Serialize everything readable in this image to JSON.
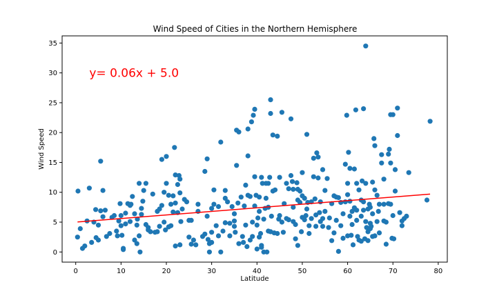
{
  "chart_data": {
    "type": "scatter",
    "title": "Wind Speed of Cities in the Northern Hemisphere",
    "xlabel": "Latitude",
    "ylabel": "Wind Speed",
    "xlim": [
      -3,
      82
    ],
    "ylim": [
      -1.7,
      36.2
    ],
    "xticks": [
      0,
      10,
      20,
      30,
      40,
      50,
      60,
      70,
      80
    ],
    "yticks": [
      0,
      5,
      10,
      15,
      20,
      25,
      30,
      35
    ],
    "grid": false,
    "point_color": "#1f77b4",
    "line_color": "#ff0000",
    "annotation": {
      "text": "y= 0.06x + 5.0",
      "x": 3,
      "y": 30,
      "color": "#ff0000"
    },
    "regression": {
      "slope": 0.06,
      "intercept": 5.0,
      "x_range": [
        0.4,
        78.2
      ]
    },
    "points": [
      [
        0.4,
        2.5
      ],
      [
        0.5,
        10.2
      ],
      [
        1,
        3.9
      ],
      [
        1.5,
        0.6
      ],
      [
        2,
        1
      ],
      [
        2.5,
        5.2
      ],
      [
        3,
        10.7
      ],
      [
        3.5,
        1.6
      ],
      [
        4,
        5
      ],
      [
        4.4,
        7.1
      ],
      [
        4.5,
        2.4
      ],
      [
        5,
        4.5
      ],
      [
        5,
        2
      ],
      [
        5.5,
        15.2
      ],
      [
        5.5,
        6.9
      ],
      [
        6,
        5.9
      ],
      [
        6,
        10.3
      ],
      [
        6.5,
        7
      ],
      [
        6.8,
        2.6
      ],
      [
        7.5,
        3.1
      ],
      [
        8,
        5.8
      ],
      [
        8.5,
        6.1
      ],
      [
        9,
        3.5
      ],
      [
        9.2,
        2.7
      ],
      [
        9.5,
        5.2
      ],
      [
        9.8,
        8.1
      ],
      [
        10,
        4.4
      ],
      [
        10,
        6.1
      ],
      [
        10.2,
        2.8
      ],
      [
        10.5,
        0.6
      ],
      [
        10.5,
        0.4
      ],
      [
        11,
        4.7
      ],
      [
        11,
        6.5
      ],
      [
        11.5,
        8.1
      ],
      [
        12,
        5.1
      ],
      [
        12,
        7.8
      ],
      [
        12.2,
        8
      ],
      [
        12.5,
        9.3
      ],
      [
        13,
        6.4
      ],
      [
        13,
        2
      ],
      [
        13.5,
        4.5
      ],
      [
        13.5,
        1.4
      ],
      [
        13.6,
        5.5
      ],
      [
        14,
        11.5
      ],
      [
        14,
        2.7
      ],
      [
        14.2,
        0
      ],
      [
        14.5,
        6.3
      ],
      [
        14.5,
        7.3
      ],
      [
        14.8,
        8.5
      ],
      [
        15,
        10.3
      ],
      [
        15.5,
        11.5
      ],
      [
        15.5,
        4.6
      ],
      [
        16,
        4.1
      ],
      [
        16,
        3.7
      ],
      [
        16.5,
        3.4
      ],
      [
        17,
        9.7
      ],
      [
        17.5,
        3.3
      ],
      [
        18,
        3.4
      ],
      [
        18,
        6.8
      ],
      [
        18.5,
        4.3
      ],
      [
        18.5,
        7.2
      ],
      [
        19,
        15.5
      ],
      [
        19,
        7.8
      ],
      [
        19.5,
        10
      ],
      [
        19.5,
        5
      ],
      [
        19.8,
        3.7
      ],
      [
        20,
        16
      ],
      [
        20,
        11.5
      ],
      [
        20.5,
        9.5
      ],
      [
        20.5,
        4.2
      ],
      [
        21,
        8
      ],
      [
        21,
        4.4
      ],
      [
        21.5,
        6.7
      ],
      [
        21.5,
        9.4
      ],
      [
        21.8,
        17.5
      ],
      [
        22,
        12.9
      ],
      [
        22,
        8.2
      ],
      [
        22,
        1
      ],
      [
        22.5,
        6.6
      ],
      [
        22.5,
        11.3
      ],
      [
        22.8,
        12.8
      ],
      [
        23,
        9.9
      ],
      [
        23,
        12.2
      ],
      [
        23,
        1.2
      ],
      [
        23.2,
        5.1
      ],
      [
        23.5,
        7.2
      ],
      [
        24,
        8.8
      ],
      [
        24.5,
        8.4
      ],
      [
        25,
        2.5
      ],
      [
        25,
        5.3
      ],
      [
        25.5,
        5.3
      ],
      [
        25.5,
        1.3
      ],
      [
        26,
        2
      ],
      [
        26.5,
        1.2
      ],
      [
        27,
        6.8
      ],
      [
        27,
        8
      ],
      [
        28,
        2.6
      ],
      [
        28.5,
        13.5
      ],
      [
        28.5,
        3
      ],
      [
        29,
        15.6
      ],
      [
        29,
        6
      ],
      [
        29.2,
        2.1
      ],
      [
        29.5,
        0
      ],
      [
        29.5,
        1.4
      ],
      [
        30,
        1.6
      ],
      [
        30,
        7.3
      ],
      [
        30,
        3.3
      ],
      [
        30.5,
        8
      ],
      [
        30.5,
        10.4
      ],
      [
        31,
        4.4
      ],
      [
        31.5,
        7.6
      ],
      [
        31.5,
        2.7
      ],
      [
        32,
        0
      ],
      [
        32,
        18.4
      ],
      [
        32.5,
        3.5
      ],
      [
        33,
        4.9
      ],
      [
        33,
        10.3
      ],
      [
        33,
        9
      ],
      [
        33.5,
        8.4
      ],
      [
        34,
        4.8
      ],
      [
        34,
        2.7
      ],
      [
        34.5,
        7.6
      ],
      [
        35,
        6.4
      ],
      [
        35,
        5.2
      ],
      [
        35,
        4.3
      ],
      [
        35.2,
        3.3
      ],
      [
        35.5,
        14.5
      ],
      [
        35.5,
        20.4
      ],
      [
        35.8,
        8.2
      ],
      [
        36,
        1.4
      ],
      [
        36,
        20.1
      ],
      [
        36.5,
        9.2
      ],
      [
        36.8,
        2.6
      ],
      [
        37,
        1.6
      ],
      [
        37.2,
        7.7
      ],
      [
        37.5,
        11.2
      ],
      [
        37.5,
        4.5
      ],
      [
        37.8,
        0.9
      ],
      [
        38,
        20.6
      ],
      [
        38,
        9.5
      ],
      [
        38,
        16.1
      ],
      [
        38.5,
        2
      ],
      [
        38.5,
        9.3
      ],
      [
        38.8,
        21.8
      ],
      [
        39,
        5
      ],
      [
        39,
        2.6
      ],
      [
        39.2,
        22.9
      ],
      [
        39.5,
        23.9
      ],
      [
        39.5,
        12.6
      ],
      [
        39.5,
        7.7
      ],
      [
        39.8,
        9.5
      ],
      [
        40,
        0.5
      ],
      [
        40,
        4.5
      ],
      [
        40.2,
        5.7
      ],
      [
        40.5,
        2.5
      ],
      [
        40.5,
        9.2
      ],
      [
        40.5,
        6.8
      ],
      [
        40.8,
        3.1
      ],
      [
        41,
        0.8
      ],
      [
        41,
        12.5
      ],
      [
        41,
        1.1
      ],
      [
        41.2,
        11.5
      ],
      [
        41.5,
        5.5
      ],
      [
        41.5,
        0
      ],
      [
        41.8,
        7.3
      ],
      [
        42,
        11.5
      ],
      [
        42,
        9
      ],
      [
        42.2,
        0
      ],
      [
        42.5,
        11.5
      ],
      [
        42.5,
        7.5
      ],
      [
        42.5,
        3.5
      ],
      [
        42.8,
        12.5
      ],
      [
        43,
        25.5
      ],
      [
        43,
        23.2
      ],
      [
        43,
        3.4
      ],
      [
        43.2,
        6
      ],
      [
        43.5,
        19.6
      ],
      [
        43.5,
        10.2
      ],
      [
        43.8,
        3.2
      ],
      [
        44,
        10.4
      ],
      [
        44.5,
        19.4
      ],
      [
        44.5,
        3.1
      ],
      [
        44.8,
        5.5
      ],
      [
        45,
        12.5
      ],
      [
        45,
        6.1
      ],
      [
        45.5,
        23.4
      ],
      [
        45.5,
        5
      ],
      [
        45.8,
        3.3
      ],
      [
        46,
        8.1
      ],
      [
        46.5,
        11.5
      ],
      [
        46.5,
        5.6
      ],
      [
        47,
        10.6
      ],
      [
        47,
        5.4
      ],
      [
        47.5,
        22.3
      ],
      [
        47.5,
        12.8
      ],
      [
        47.8,
        11.8
      ],
      [
        48,
        10.5
      ],
      [
        48,
        7.5
      ],
      [
        48,
        5.1
      ],
      [
        48.5,
        2.2
      ],
      [
        48.5,
        4.6
      ],
      [
        48.8,
        11.6
      ],
      [
        49,
        10.5
      ],
      [
        49,
        8.7
      ],
      [
        49,
        1.1
      ],
      [
        49.5,
        8.3
      ],
      [
        49.5,
        10.2
      ],
      [
        49.8,
        3.4
      ],
      [
        50,
        9.4
      ],
      [
        50,
        5.8
      ],
      [
        50,
        13.3
      ],
      [
        50.5,
        9
      ],
      [
        50.5,
        5.4
      ],
      [
        50.8,
        6.1
      ],
      [
        51,
        19.7
      ],
      [
        51,
        7.2
      ],
      [
        51.2,
        8.3
      ],
      [
        51.5,
        4.4
      ],
      [
        51.5,
        3.1
      ],
      [
        52,
        8.4
      ],
      [
        52,
        5.6
      ],
      [
        52.5,
        15.7
      ],
      [
        52.5,
        12.6
      ],
      [
        52.8,
        8.9
      ],
      [
        53,
        6.2
      ],
      [
        53,
        4.3
      ],
      [
        53.2,
        16.6
      ],
      [
        53.5,
        15.9
      ],
      [
        53.5,
        12.4
      ],
      [
        53.8,
        6.6
      ],
      [
        54,
        5.1
      ],
      [
        54,
        8.4
      ],
      [
        54.5,
        13.8
      ],
      [
        54.5,
        5.6
      ],
      [
        54.5,
        4.3
      ],
      [
        55,
        6.8
      ],
      [
        55,
        10.3
      ],
      [
        55.5,
        12.3
      ],
      [
        55.8,
        4.1
      ],
      [
        56,
        5.7
      ],
      [
        56.5,
        8.1
      ],
      [
        56.5,
        1.9
      ],
      [
        57,
        9.4
      ],
      [
        57,
        3.2
      ],
      [
        57.5,
        9.2
      ],
      [
        57.5,
        5.3
      ],
      [
        58,
        0.1
      ],
      [
        58,
        9.1
      ],
      [
        58.5,
        8.3
      ],
      [
        58.5,
        4.4
      ],
      [
        59,
        2.3
      ],
      [
        59,
        6.4
      ],
      [
        59.5,
        14.7
      ],
      [
        59.5,
        8.4
      ],
      [
        59.8,
        22.9
      ],
      [
        60,
        11.5
      ],
      [
        60,
        2.7
      ],
      [
        60,
        9.6
      ],
      [
        60.2,
        16.7
      ],
      [
        60.5,
        14
      ],
      [
        60.5,
        8.5
      ],
      [
        60.5,
        6
      ],
      [
        60.8,
        2.8
      ],
      [
        61,
        6.8
      ],
      [
        61,
        4.6
      ],
      [
        61.2,
        1.2
      ],
      [
        61.5,
        7.4
      ],
      [
        61.5,
        13.9
      ],
      [
        61.8,
        23.8
      ],
      [
        62,
        11.5
      ],
      [
        62,
        7
      ],
      [
        62,
        5.3
      ],
      [
        62.2,
        2.6
      ],
      [
        62.5,
        2
      ],
      [
        62.5,
        10.4
      ],
      [
        63,
        8.7
      ],
      [
        63,
        6
      ],
      [
        63,
        1.8
      ],
      [
        63.2,
        11.9
      ],
      [
        63.5,
        24
      ],
      [
        63.5,
        8.4
      ],
      [
        63.5,
        7
      ],
      [
        63.8,
        2.2
      ],
      [
        64,
        34.5
      ],
      [
        64,
        11.5
      ],
      [
        64,
        5.1
      ],
      [
        64.2,
        4.1
      ],
      [
        64.5,
        3.4
      ],
      [
        64.5,
        7.2
      ],
      [
        64.5,
        1.9
      ],
      [
        64.8,
        8
      ],
      [
        65,
        7.5
      ],
      [
        65,
        4.8
      ],
      [
        65,
        3.9
      ],
      [
        65.2,
        4.3
      ],
      [
        65.5,
        11.7
      ],
      [
        65.5,
        6.4
      ],
      [
        65.5,
        2.6
      ],
      [
        65.8,
        19
      ],
      [
        66,
        17.8
      ],
      [
        66,
        10.4
      ],
      [
        66,
        2.7
      ],
      [
        66.5,
        9.5
      ],
      [
        66.5,
        5.1
      ],
      [
        66.8,
        6.8
      ],
      [
        67,
        8
      ],
      [
        67,
        3.2
      ],
      [
        67.5,
        14.9
      ],
      [
        67.5,
        16.3
      ],
      [
        68,
        12.2
      ],
      [
        68,
        8
      ],
      [
        68,
        5.2
      ],
      [
        68.5,
        1.3
      ],
      [
        68.5,
        5
      ],
      [
        69,
        16.4
      ],
      [
        69,
        8.1
      ],
      [
        69.2,
        17.2
      ],
      [
        69.5,
        23
      ],
      [
        69.5,
        14.9
      ],
      [
        69.5,
        8
      ],
      [
        69.8,
        2.3
      ],
      [
        70,
        23
      ],
      [
        70,
        6.1
      ],
      [
        70.2,
        2.2
      ],
      [
        70.5,
        13.8
      ],
      [
        70.5,
        10.2
      ],
      [
        71,
        19.5
      ],
      [
        71,
        24.1
      ],
      [
        71.5,
        6.6
      ],
      [
        72,
        5.2
      ],
      [
        72,
        4.4
      ],
      [
        72.5,
        5.6
      ],
      [
        73,
        6
      ],
      [
        73.5,
        13.3
      ],
      [
        77.5,
        8.7
      ],
      [
        78.2,
        21.9
      ]
    ]
  }
}
